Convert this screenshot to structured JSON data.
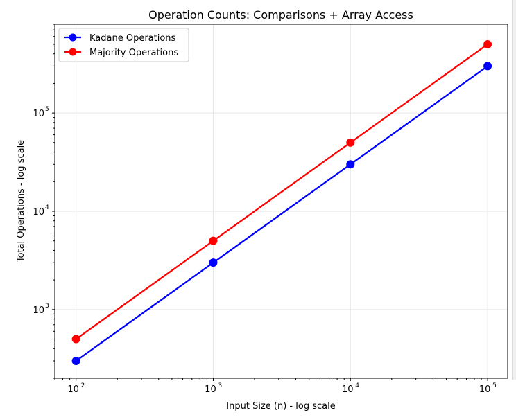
{
  "chart_data": {
    "type": "line",
    "title": "Operation Counts: Comparisons + Array Access",
    "xlabel": "Input Size (n) - log scale",
    "ylabel": "Total Operations - log scale",
    "xscale": "log",
    "yscale": "log",
    "xlim": [
      70,
      140000
    ],
    "ylim": [
      200,
      800000
    ],
    "x_ticks": [
      100,
      1000,
      10000,
      100000
    ],
    "x_tick_labels": [
      {
        "base": "10",
        "exp": "2"
      },
      {
        "base": "10",
        "exp": "3"
      },
      {
        "base": "10",
        "exp": "4"
      },
      {
        "base": "10",
        "exp": "5"
      }
    ],
    "y_ticks": [
      1000,
      10000,
      100000
    ],
    "y_tick_labels": [
      {
        "base": "10",
        "exp": "3"
      },
      {
        "base": "10",
        "exp": "4"
      },
      {
        "base": "10",
        "exp": "5"
      }
    ],
    "grid": true,
    "legend_position": "top-left",
    "x": [
      100,
      1000,
      10000,
      100000
    ],
    "series": [
      {
        "name": "Kadane Operations",
        "color": "#0000ff",
        "values": [
          300,
          3000,
          30000,
          300000
        ]
      },
      {
        "name": "Majority Operations",
        "color": "#ff0000",
        "values": [
          500,
          5000,
          50000,
          500000
        ]
      }
    ]
  }
}
